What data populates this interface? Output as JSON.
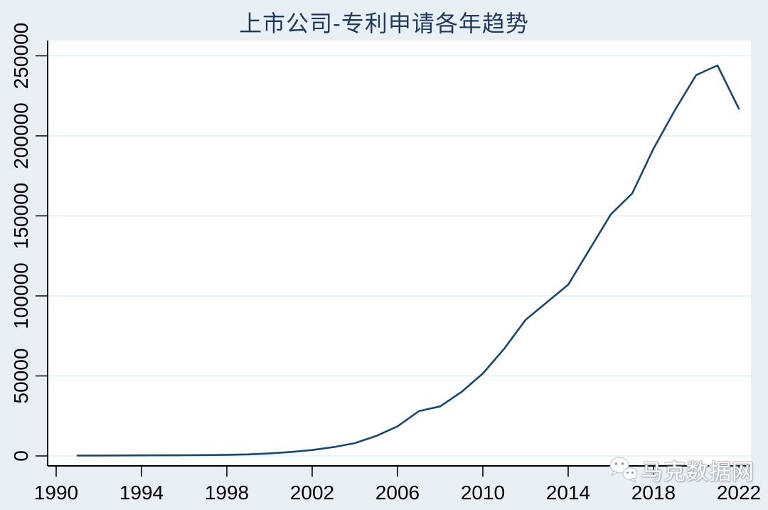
{
  "page": {
    "background_color": "#e9f0f5"
  },
  "chart_data": {
    "type": "line",
    "title": "上市公司-专利申请各年趋势",
    "subtitle": "马克数据网",
    "xlabel": "",
    "ylabel": "",
    "x": [
      1991,
      1992,
      1993,
      1994,
      1995,
      1996,
      1997,
      1998,
      1999,
      2000,
      2001,
      2002,
      2003,
      2004,
      2005,
      2006,
      2007,
      2008,
      2009,
      2010,
      2011,
      2012,
      2013,
      2014,
      2015,
      2016,
      2017,
      2018,
      2019,
      2020,
      2021,
      2022
    ],
    "values": [
      200,
      250,
      300,
      350,
      400,
      450,
      550,
      700,
      1000,
      1600,
      2500,
      3700,
      5500,
      8000,
      12500,
      18500,
      28000,
      31000,
      40000,
      51500,
      67000,
      85000,
      96000,
      107000,
      129000,
      151000,
      164000,
      192000,
      216000,
      238000,
      244000,
      217000
    ],
    "x_ticks": [
      1990,
      1994,
      1998,
      2002,
      2006,
      2010,
      2014,
      2018,
      2022
    ],
    "y_ticks": [
      0,
      50000,
      100000,
      150000,
      200000,
      250000
    ],
    "xlim": [
      1989.6,
      2022.6
    ],
    "ylim": [
      0,
      250000
    ],
    "grid": true,
    "legend": "none",
    "line_color": "#1a476f",
    "grid_color": "#e2edf4",
    "axis_color": "#000000",
    "plot_background": "#ffffff",
    "title_color": "#1f3a5c"
  },
  "watermark": {
    "text": "马克数据网",
    "icon": "wechat-bubbles-icon"
  }
}
